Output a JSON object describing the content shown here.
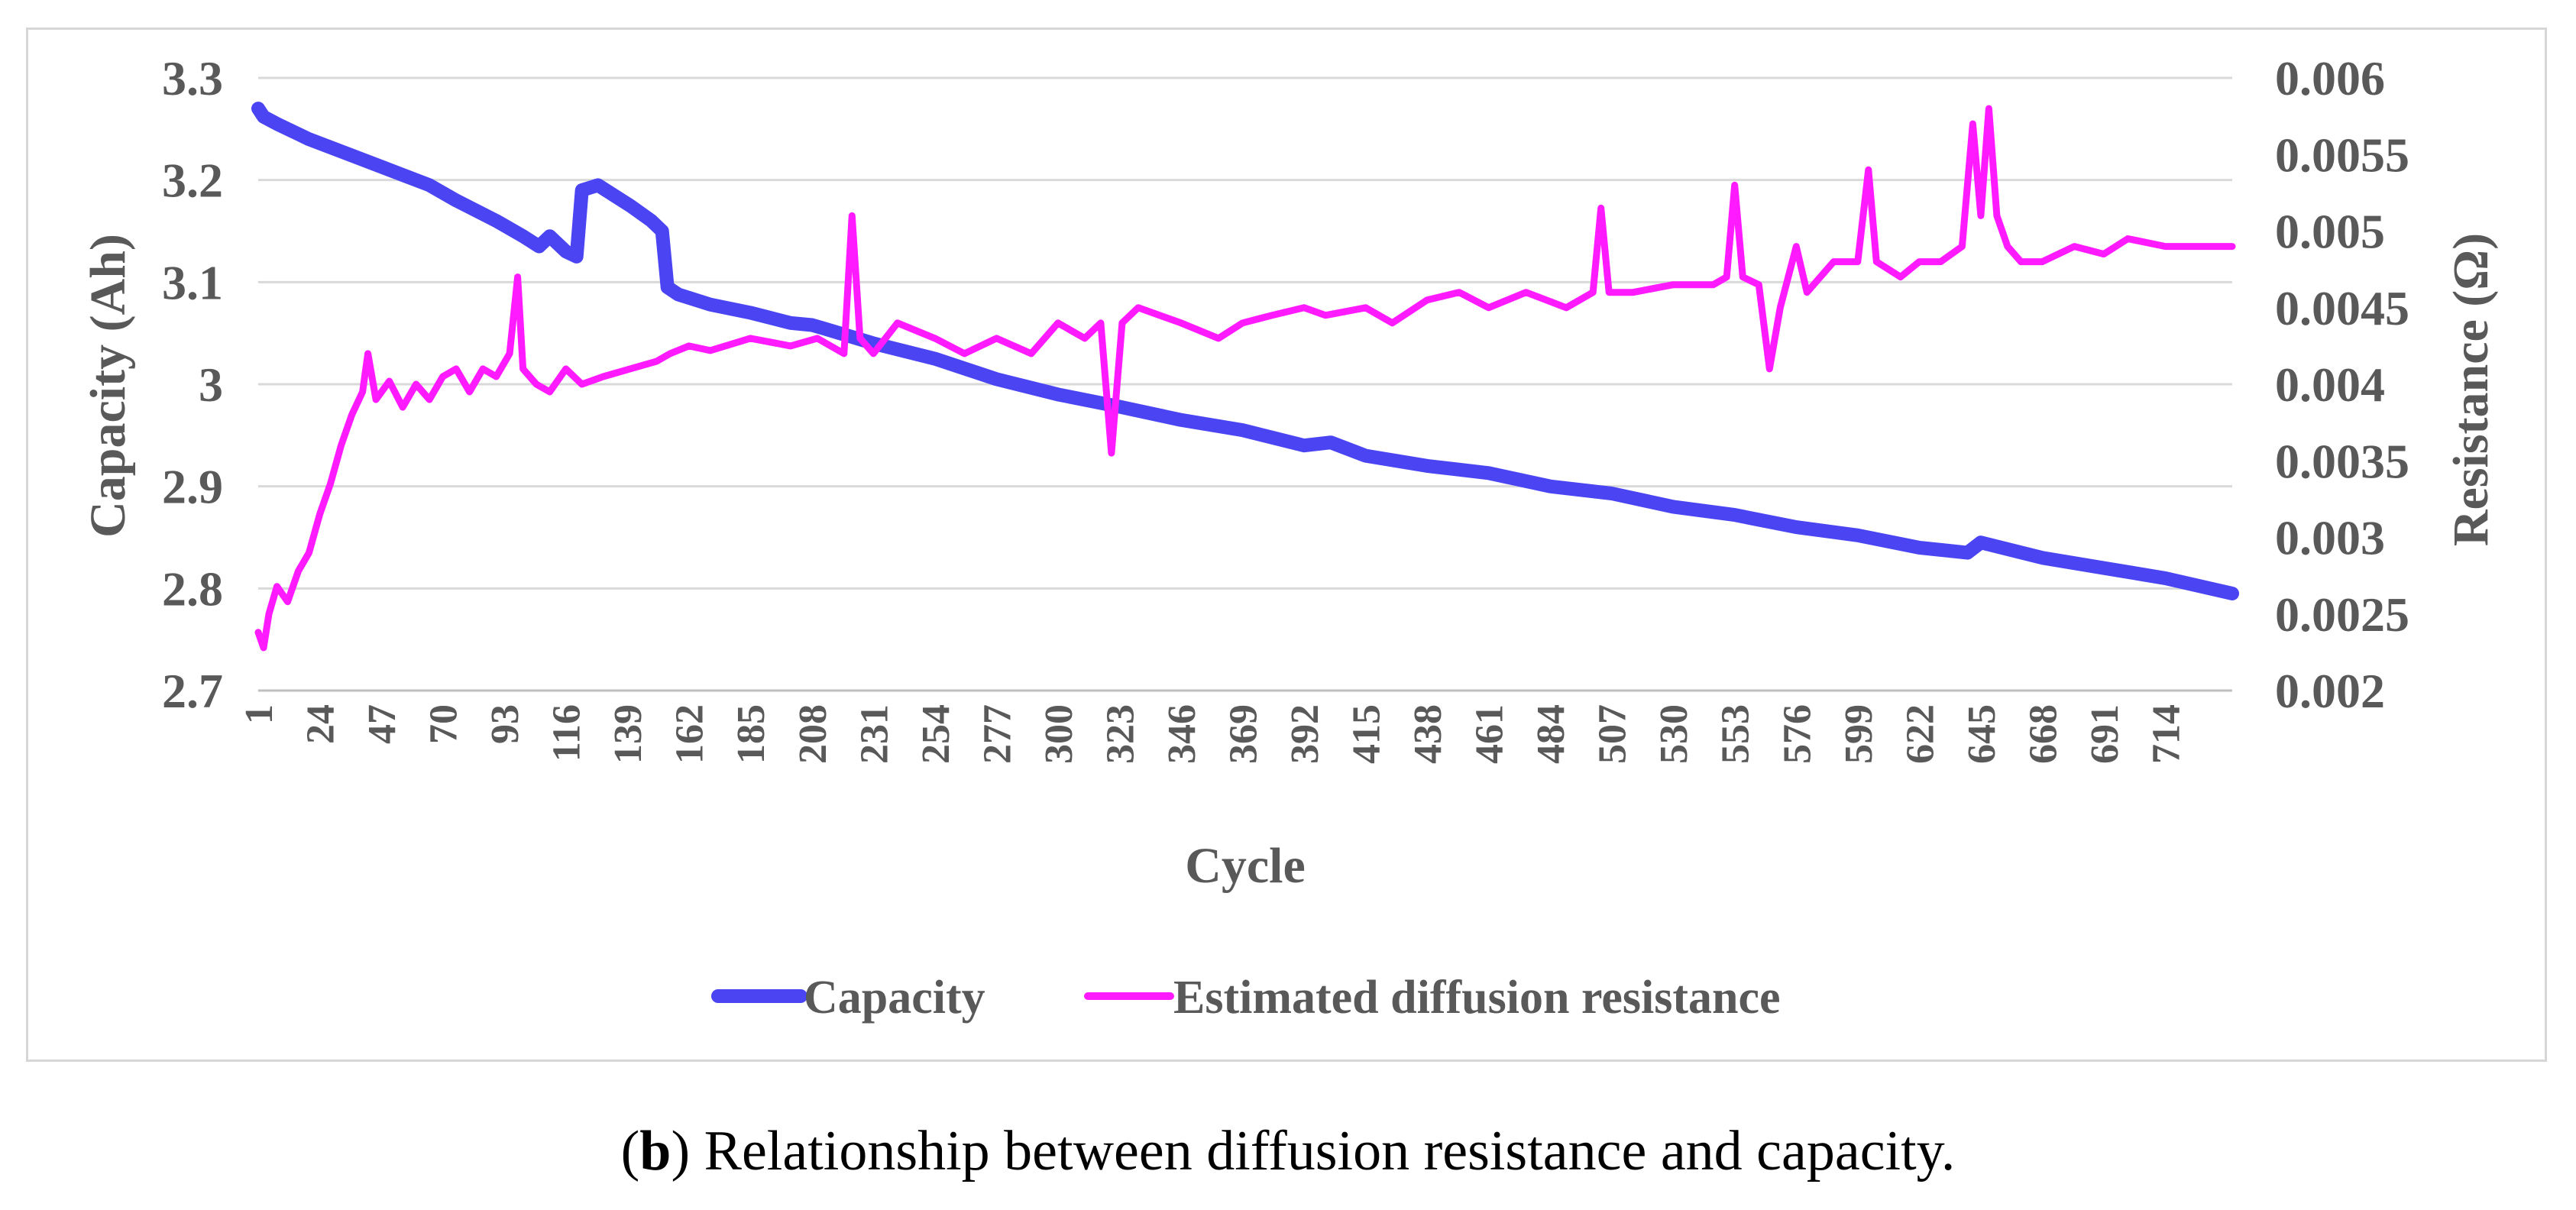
{
  "chart_data": {
    "type": "line",
    "title": "",
    "xlabel": "Cycle",
    "ylabel": "Capacity (Ah)",
    "ylabel_right": "Resistance (Ω)",
    "x_range": [
      1,
      739
    ],
    "ylim": [
      2.7,
      3.3
    ],
    "ylim_right": [
      0.002,
      0.006
    ],
    "y_ticks": [
      "3.3",
      "3.2",
      "3.1",
      "3",
      "2.9",
      "2.8",
      "2.7"
    ],
    "y_ticks_right": [
      "0.006",
      "0.0055",
      "0.005",
      "0.0045",
      "0.004",
      "0.0035",
      "0.003",
      "0.0025",
      "0.002"
    ],
    "x_ticks": [
      "1",
      "24",
      "47",
      "70",
      "93",
      "116",
      "139",
      "162",
      "185",
      "208",
      "231",
      "254",
      "277",
      "300",
      "323",
      "346",
      "369",
      "392",
      "415",
      "438",
      "461",
      "484",
      "507",
      "530",
      "553",
      "576",
      "599",
      "622",
      "645",
      "668",
      "691",
      "714"
    ],
    "legend_position": "bottom",
    "series": [
      {
        "name": "Capacity",
        "axis": "left",
        "color": "#4a44f2",
        "points": [
          [
            1,
            3.27
          ],
          [
            3,
            3.262
          ],
          [
            8,
            3.255
          ],
          [
            20,
            3.24
          ],
          [
            35,
            3.225
          ],
          [
            50,
            3.21
          ],
          [
            65,
            3.195
          ],
          [
            75,
            3.18
          ],
          [
            90,
            3.16
          ],
          [
            100,
            3.145
          ],
          [
            106,
            3.135
          ],
          [
            110,
            3.145
          ],
          [
            116,
            3.13
          ],
          [
            120,
            3.125
          ],
          [
            122,
            3.19
          ],
          [
            128,
            3.195
          ],
          [
            140,
            3.175
          ],
          [
            148,
            3.16
          ],
          [
            152,
            3.15
          ],
          [
            154,
            3.095
          ],
          [
            158,
            3.088
          ],
          [
            170,
            3.078
          ],
          [
            185,
            3.07
          ],
          [
            200,
            3.06
          ],
          [
            208,
            3.058
          ],
          [
            212,
            3.055
          ],
          [
            231,
            3.04
          ],
          [
            254,
            3.025
          ],
          [
            277,
            3.005
          ],
          [
            300,
            2.99
          ],
          [
            323,
            2.978
          ],
          [
            346,
            2.965
          ],
          [
            369,
            2.955
          ],
          [
            392,
            2.94
          ],
          [
            402,
            2.943
          ],
          [
            415,
            2.93
          ],
          [
            438,
            2.92
          ],
          [
            461,
            2.913
          ],
          [
            484,
            2.9
          ],
          [
            507,
            2.893
          ],
          [
            530,
            2.88
          ],
          [
            553,
            2.872
          ],
          [
            576,
            2.86
          ],
          [
            599,
            2.852
          ],
          [
            622,
            2.84
          ],
          [
            640,
            2.835
          ],
          [
            645,
            2.845
          ],
          [
            668,
            2.83
          ],
          [
            691,
            2.82
          ],
          [
            714,
            2.81
          ],
          [
            739,
            2.795
          ]
        ]
      },
      {
        "name": "Estimated diffusion resistance",
        "axis": "right",
        "color": "#ff1aff",
        "points": [
          [
            1,
            0.00238
          ],
          [
            3,
            0.00228
          ],
          [
            5,
            0.0025
          ],
          [
            8,
            0.00268
          ],
          [
            12,
            0.00258
          ],
          [
            16,
            0.00278
          ],
          [
            20,
            0.0029
          ],
          [
            24,
            0.00315
          ],
          [
            28,
            0.00335
          ],
          [
            32,
            0.0036
          ],
          [
            36,
            0.0038
          ],
          [
            40,
            0.00395
          ],
          [
            42,
            0.0042
          ],
          [
            45,
            0.0039
          ],
          [
            50,
            0.00402
          ],
          [
            55,
            0.00385
          ],
          [
            60,
            0.004
          ],
          [
            65,
            0.0039
          ],
          [
            70,
            0.00405
          ],
          [
            75,
            0.0041
          ],
          [
            80,
            0.00395
          ],
          [
            85,
            0.0041
          ],
          [
            90,
            0.00405
          ],
          [
            95,
            0.0042
          ],
          [
            98,
            0.0047
          ],
          [
            100,
            0.0041
          ],
          [
            105,
            0.004
          ],
          [
            110,
            0.00395
          ],
          [
            116,
            0.0041
          ],
          [
            122,
            0.004
          ],
          [
            130,
            0.00405
          ],
          [
            140,
            0.0041
          ],
          [
            150,
            0.00415
          ],
          [
            155,
            0.0042
          ],
          [
            162,
            0.00425
          ],
          [
            170,
            0.00422
          ],
          [
            185,
            0.0043
          ],
          [
            200,
            0.00425
          ],
          [
            210,
            0.0043
          ],
          [
            220,
            0.0042
          ],
          [
            223,
            0.0051
          ],
          [
            226,
            0.0043
          ],
          [
            231,
            0.0042
          ],
          [
            240,
            0.0044
          ],
          [
            254,
            0.0043
          ],
          [
            265,
            0.0042
          ],
          [
            277,
            0.0043
          ],
          [
            290,
            0.0042
          ],
          [
            300,
            0.0044
          ],
          [
            310,
            0.0043
          ],
          [
            316,
            0.0044
          ],
          [
            320,
            0.00355
          ],
          [
            324,
            0.0044
          ],
          [
            330,
            0.0045
          ],
          [
            346,
            0.0044
          ],
          [
            360,
            0.0043
          ],
          [
            369,
            0.0044
          ],
          [
            380,
            0.00445
          ],
          [
            392,
            0.0045
          ],
          [
            400,
            0.00445
          ],
          [
            415,
            0.0045
          ],
          [
            425,
            0.0044
          ],
          [
            438,
            0.00455
          ],
          [
            450,
            0.0046
          ],
          [
            461,
            0.0045
          ],
          [
            475,
            0.0046
          ],
          [
            490,
            0.0045
          ],
          [
            500,
            0.0046
          ],
          [
            503,
            0.00515
          ],
          [
            506,
            0.0046
          ],
          [
            515,
            0.0046
          ],
          [
            530,
            0.00465
          ],
          [
            545,
            0.00465
          ],
          [
            550,
            0.0047
          ],
          [
            553,
            0.0053
          ],
          [
            556,
            0.0047
          ],
          [
            562,
            0.00465
          ],
          [
            566,
            0.0041
          ],
          [
            570,
            0.0045
          ],
          [
            576,
            0.0049
          ],
          [
            580,
            0.0046
          ],
          [
            590,
            0.0048
          ],
          [
            599,
            0.0048
          ],
          [
            603,
            0.0054
          ],
          [
            606,
            0.0048
          ],
          [
            615,
            0.0047
          ],
          [
            622,
            0.0048
          ],
          [
            630,
            0.0048
          ],
          [
            638,
            0.0049
          ],
          [
            642,
            0.0057
          ],
          [
            645,
            0.0051
          ],
          [
            648,
            0.0058
          ],
          [
            651,
            0.0051
          ],
          [
            655,
            0.0049
          ],
          [
            660,
            0.0048
          ],
          [
            668,
            0.0048
          ],
          [
            680,
            0.0049
          ],
          [
            691,
            0.00485
          ],
          [
            700,
            0.00495
          ],
          [
            714,
            0.0049
          ],
          [
            725,
            0.0049
          ],
          [
            739,
            0.0049
          ]
        ]
      }
    ]
  },
  "caption": {
    "label": "b",
    "text": ") Relationship between diffusion resistance and capacity."
  }
}
